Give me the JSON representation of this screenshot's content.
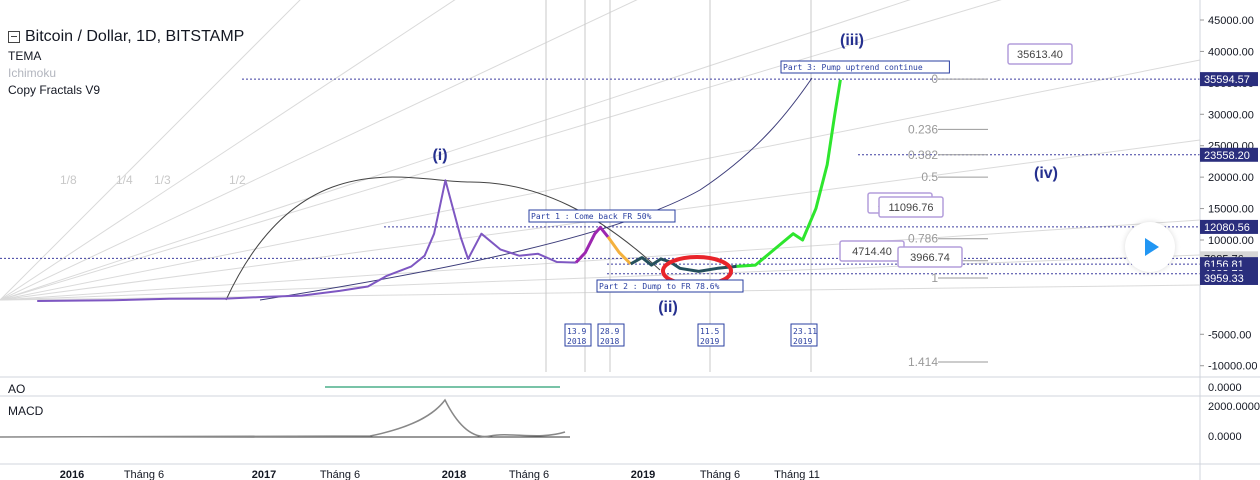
{
  "legend": {
    "title": "Bitcoin / Dollar, 1D, BITSTAMP",
    "indicators": [
      "TEMA",
      "Ichimoku",
      "Copy Fractals V9"
    ]
  },
  "panes": {
    "ao": "AO",
    "macd": "MACD"
  },
  "colors": {
    "accent": "#2962ff",
    "historical": "#7e57c2",
    "fractal_purple": "#9c27b0",
    "fractal_orange": "#f4b13e",
    "fractal_teal": "#25505c",
    "fractal_green": "#2ee62e",
    "circle": "#e8242a",
    "wave_label": "#25308f"
  },
  "chart_data": {
    "type": "line",
    "title": "Bitcoin / Dollar, 1D, BITSTAMP",
    "ylim": [
      -11000,
      45000
    ],
    "grid": false,
    "x_ticks": [
      "2016",
      "Tháng 6",
      "2017",
      "Tháng 6",
      "2018",
      "Tháng 6",
      "2019",
      "Tháng 6",
      "Tháng 11"
    ],
    "y_ticks": [
      "45000.00",
      "40000.00",
      "35000.00",
      "30000.00",
      "25000.00",
      "20000.00",
      "15000.00",
      "10000.00",
      "5000.00",
      "-5000.00",
      "-10000.00"
    ],
    "price_labels": [
      {
        "text": "35594.57",
        "value": 35594.57
      },
      {
        "text": "23558.20",
        "value": 23558.2
      },
      {
        "text": "12080.56",
        "value": 12080.56
      },
      {
        "text": "7085.76",
        "value": 7085.76
      },
      {
        "text": "6156.81",
        "value": 6156.81
      },
      {
        "text": "4633.70",
        "value": 4633.7
      },
      {
        "text": "3959.33",
        "value": 3959.33
      }
    ],
    "fib_levels": [
      {
        "label": "0",
        "value": 35600
      },
      {
        "label": "0.236",
        "value": 27600
      },
      {
        "label": "0.382",
        "value": 23560
      },
      {
        "label": "0.5",
        "value": 20000
      },
      {
        "label": "0.786",
        "value": 10200
      },
      {
        "label": "0.886",
        "value": 6700
      },
      {
        "label": "1",
        "value": 3960
      },
      {
        "label": "1.414",
        "value": -9400
      }
    ],
    "fan_labels": [
      "1/8",
      "1/4",
      "1/3",
      "1/2"
    ],
    "wave_labels": [
      {
        "text": "(i)",
        "date": "2018.0",
        "value": 23500
      },
      {
        "text": "(ii)",
        "date": "2019.1",
        "value": 0
      },
      {
        "text": "(iii)",
        "date": "2019.95",
        "value": 42800
      },
      {
        "text": "(iv)",
        "date": "2020.9",
        "value": 21500
      }
    ],
    "annotations": [
      {
        "text": "Part 1 : Come back FR 50%",
        "date": "2018.43",
        "value": 14000
      },
      {
        "text": "Part 2 : Dump to FR 78.6%",
        "date": "2018.78",
        "value": 2500
      },
      {
        "text": "Part 3: Pump uptrend continue",
        "date": "2019.7",
        "value": 37200
      }
    ],
    "date_markers": [
      {
        "text": [
          "13.9",
          "2018"
        ]
      },
      {
        "text": [
          "28.9",
          "2018"
        ]
      },
      {
        "text": [
          "11.5",
          "2019"
        ]
      },
      {
        "text": [
          "23.11",
          "2019"
        ]
      }
    ],
    "callouts": [
      "35613.40",
      "11996.75",
      "11096.76",
      "4714.40",
      "3966.74"
    ],
    "series": [
      {
        "values": [
          [
            2015.8,
            300
          ],
          [
            2016.2,
            420
          ],
          [
            2016.5,
            650
          ],
          [
            2016.8,
            680
          ],
          [
            2017.0,
            950
          ],
          [
            2017.2,
            1150
          ],
          [
            2017.4,
            1900
          ],
          [
            2017.55,
            2600
          ],
          [
            2017.65,
            4300
          ],
          [
            2017.78,
            5800
          ],
          [
            2017.85,
            7500
          ],
          [
            2017.9,
            11000
          ],
          [
            2017.96,
            19500
          ],
          [
            2018.0,
            15000
          ],
          [
            2018.04,
            10500
          ],
          [
            2018.08,
            7000
          ],
          [
            2018.15,
            11000
          ],
          [
            2018.25,
            8500
          ],
          [
            2018.35,
            7500
          ],
          [
            2018.45,
            7800
          ],
          [
            2018.55,
            6500
          ],
          [
            2018.65,
            6400
          ]
        ]
      },
      {
        "values": [
          [
            2018.65,
            6400
          ],
          [
            2018.7,
            8000
          ],
          [
            2018.75,
            11000
          ],
          [
            2018.78,
            12000
          ],
          [
            2018.82,
            10500
          ]
        ]
      },
      {
        "values": [
          [
            2018.82,
            10500
          ],
          [
            2018.88,
            8000
          ],
          [
            2018.94,
            6200
          ]
        ]
      },
      {
        "values": [
          [
            2018.94,
            6200
          ],
          [
            2019.0,
            7200
          ],
          [
            2019.05,
            6000
          ],
          [
            2019.1,
            7000
          ],
          [
            2019.15,
            6500
          ],
          [
            2019.2,
            5500
          ],
          [
            2019.3,
            5000
          ],
          [
            2019.4,
            5500
          ],
          [
            2019.5,
            5800
          ]
        ]
      },
      {
        "values": [
          [
            2019.5,
            5800
          ],
          [
            2019.6,
            6000
          ],
          [
            2019.7,
            8500
          ],
          [
            2019.8,
            11000
          ],
          [
            2019.85,
            10000
          ],
          [
            2019.92,
            15000
          ],
          [
            2019.98,
            22000
          ],
          [
            2020.02,
            30000
          ],
          [
            2020.05,
            35500
          ]
        ]
      }
    ]
  }
}
